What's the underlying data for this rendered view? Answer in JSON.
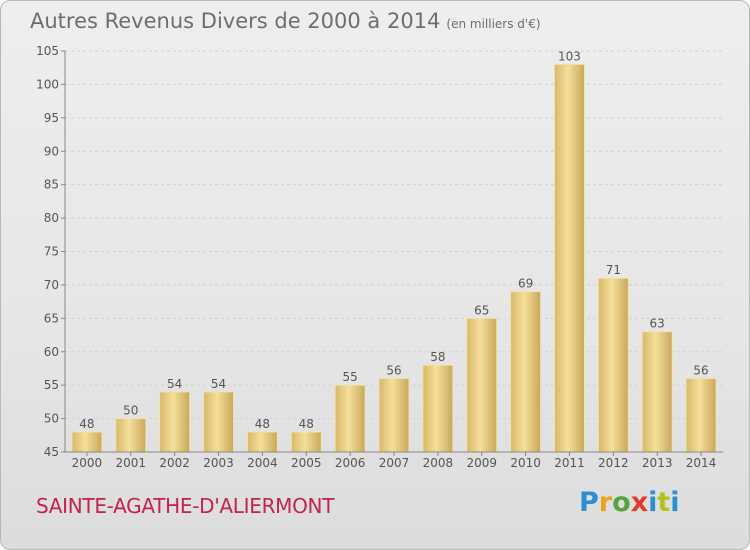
{
  "title": "Autres Revenus Divers de 2000 à 2014",
  "unit_note": "(en milliers d'€)",
  "commune": "SAINTE-AGATHE-D'ALIERMONT",
  "logo": {
    "p": "P",
    "r": "r",
    "o": "o",
    "x": "x",
    "i": "i",
    "t": "t",
    "i2": "i"
  },
  "colors": {
    "bar_light": "#f5dc95",
    "bar_dark": "#c8a75a",
    "title": "#6e6e6e",
    "commune": "#c2234f"
  },
  "chart_data": {
    "type": "bar",
    "title": "Autres Revenus Divers de 2000 à 2014",
    "subtitle": "(en milliers d'€)",
    "categories": [
      "2000",
      "2001",
      "2002",
      "2003",
      "2004",
      "2005",
      "2006",
      "2007",
      "2008",
      "2009",
      "2010",
      "2011",
      "2012",
      "2013",
      "2014"
    ],
    "values": [
      48,
      50,
      54,
      54,
      48,
      48,
      55,
      56,
      58,
      65,
      69,
      103,
      71,
      63,
      56
    ],
    "ylim": [
      45,
      105
    ],
    "yticks": [
      45,
      50,
      55,
      60,
      65,
      70,
      75,
      80,
      85,
      90,
      95,
      100,
      105
    ],
    "grid": true,
    "data_labels": true
  }
}
